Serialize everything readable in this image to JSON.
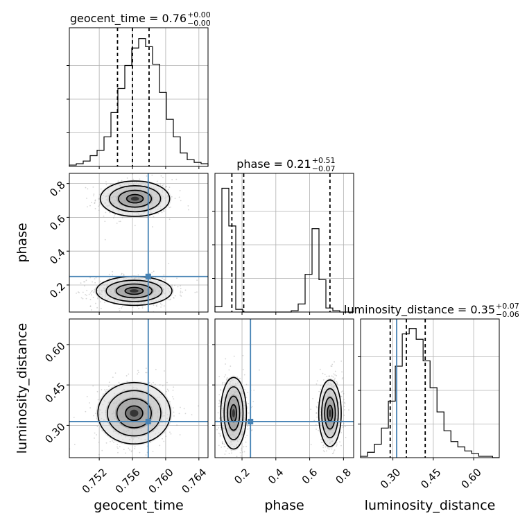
{
  "colors": {
    "truth": "#4682b4",
    "hist": "#000000",
    "grid": "#b0b0b0",
    "sample": "#888888"
  },
  "chart_data": {
    "type": "corner",
    "parameters": [
      "geocent_time",
      "phase",
      "luminosity_distance"
    ],
    "truths": {
      "geocent_time": 0.7579,
      "phase": 0.25,
      "luminosity_distance": 0.314
    },
    "titles": [
      {
        "name": "geocent_time",
        "prefix": "geocent_time = 0.76",
        "plus": "+0.00",
        "minus": "−0.00"
      },
      {
        "name": "phase",
        "prefix": "phase = 0.21",
        "plus": "+0.51",
        "minus": "−0.07"
      },
      {
        "name": "luminosity_distance",
        "prefix": "luminosity_distance = 0.35",
        "plus": "+0.07",
        "minus": "−0.06"
      }
    ],
    "axes": {
      "geocent_time": {
        "label": "geocent_time",
        "range": [
          0.7484,
          0.7651
        ],
        "ticks": [
          0.752,
          0.756,
          0.76,
          0.764
        ],
        "tick_labels": [
          "0.752",
          "0.756",
          "0.760",
          "0.764"
        ]
      },
      "phase": {
        "label": "phase",
        "range": [
          0.04,
          0.86
        ],
        "ticks": [
          0.2,
          0.4,
          0.6,
          0.8
        ],
        "tick_labels": [
          "0.2",
          "0.4",
          "0.6",
          "0.8"
        ],
        "y_ticks": [
          0.2,
          0.4,
          0.6,
          0.8
        ],
        "y_tick_labels": [
          "0.2",
          "0.4",
          "0.6",
          "0.8"
        ]
      },
      "luminosity_distance": {
        "label": "luminosity_distance",
        "range": [
          0.18,
          0.695
        ],
        "ticks": [
          0.3,
          0.45,
          0.6
        ],
        "tick_labels": [
          "0.30",
          "0.45",
          "0.60"
        ]
      }
    },
    "histograms": {
      "geocent_time": {
        "edges_start": 0.7484,
        "bin_width": 0.000835,
        "counts": [
          1,
          2,
          4,
          8,
          12,
          22,
          40,
          58,
          75,
          88,
          95,
          89,
          76,
          55,
          35,
          22,
          10,
          5,
          3,
          2
        ],
        "ymax": 100,
        "quantiles": [
          0.7542,
          0.756,
          0.758
        ]
      },
      "phase": {
        "edges_start": 0.04,
        "bin_width": 0.041,
        "counts": [
          4,
          92,
          64,
          2,
          0,
          0,
          0,
          0,
          0,
          0,
          0,
          1,
          6,
          28,
          62,
          24,
          3,
          1,
          0,
          0
        ],
        "ymax": 100,
        "quantiles": [
          0.14,
          0.21,
          0.72
        ]
      },
      "luminosity_distance": {
        "edges_start": 0.18,
        "bin_width": 0.0258,
        "counts": [
          1,
          4,
          10,
          22,
          42,
          68,
          92,
          96,
          88,
          72,
          52,
          34,
          20,
          12,
          8,
          5,
          3,
          1,
          1,
          0
        ],
        "ymax": 100,
        "quantiles": [
          0.29,
          0.35,
          0.42
        ]
      }
    },
    "density_blobs": [
      {
        "x_param": "geocent_time",
        "y_param": "phase",
        "cx": 0.7563,
        "cy": 0.71,
        "rx": 0.0022,
        "ry": 0.055,
        "weight": 1
      },
      {
        "x_param": "geocent_time",
        "y_param": "phase",
        "cx": 0.7562,
        "cy": 0.165,
        "rx": 0.0024,
        "ry": 0.045,
        "weight": 1.3
      },
      {
        "x_param": "geocent_time",
        "y_param": "luminosity_distance",
        "cx": 0.7562,
        "cy": 0.345,
        "rx": 0.0023,
        "ry": 0.06,
        "weight": 1
      },
      {
        "x_param": "phase",
        "y_param": "luminosity_distance",
        "cx": 0.15,
        "cy": 0.345,
        "rx": 0.04,
        "ry": 0.07,
        "weight": 1.2
      },
      {
        "x_param": "phase",
        "y_param": "luminosity_distance",
        "cx": 0.72,
        "cy": 0.345,
        "rx": 0.035,
        "ry": 0.065,
        "weight": 1
      }
    ]
  }
}
